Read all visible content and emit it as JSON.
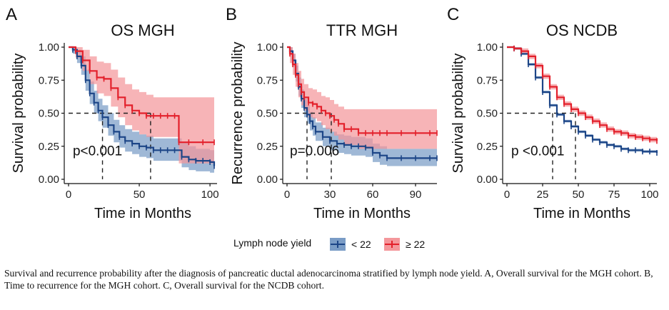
{
  "chart_data": [
    {
      "type": "line",
      "panel_letter": "A",
      "title": "OS MGH",
      "xlabel": "Time in Months",
      "ylabel": "Survival probability",
      "xlim": [
        0,
        105
      ],
      "ylim": [
        0,
        1
      ],
      "xticks": [
        0,
        50,
        100
      ],
      "xtick_labels": [
        "0",
        "50",
        "100"
      ],
      "yticks": [
        0,
        0.25,
        0.5,
        0.75,
        1.0
      ],
      "ytick_labels": [
        "0.00",
        "0.25",
        "0.50",
        "0.75",
        "1.00"
      ],
      "pvalue": "p<0.001",
      "pvalue_pos": [
        3,
        0.18
      ],
      "median_lines": [
        24,
        58
      ],
      "series": [
        {
          "name": "< 22",
          "x": [
            0,
            3,
            6,
            9,
            12,
            15,
            18,
            21,
            24,
            28,
            32,
            36,
            40,
            45,
            50,
            55,
            60,
            65,
            70,
            75,
            80,
            85,
            90,
            95,
            100,
            103
          ],
          "y": [
            1.0,
            0.98,
            0.93,
            0.86,
            0.75,
            0.65,
            0.58,
            0.52,
            0.47,
            0.41,
            0.36,
            0.32,
            0.29,
            0.27,
            0.25,
            0.24,
            0.22,
            0.22,
            0.22,
            0.22,
            0.17,
            0.15,
            0.14,
            0.14,
            0.13,
            0.1
          ],
          "lower": [
            1.0,
            0.95,
            0.88,
            0.79,
            0.67,
            0.57,
            0.5,
            0.44,
            0.39,
            0.33,
            0.28,
            0.24,
            0.21,
            0.19,
            0.17,
            0.16,
            0.14,
            0.14,
            0.14,
            0.14,
            0.09,
            0.07,
            0.06,
            0.06,
            0.05,
            0.03
          ],
          "upper": [
            1.0,
            1.0,
            0.98,
            0.93,
            0.83,
            0.74,
            0.67,
            0.61,
            0.56,
            0.5,
            0.45,
            0.41,
            0.38,
            0.36,
            0.34,
            0.33,
            0.31,
            0.31,
            0.31,
            0.31,
            0.28,
            0.25,
            0.23,
            0.23,
            0.22,
            0.2
          ]
        },
        {
          "name": "≥ 22",
          "x": [
            0,
            5,
            10,
            15,
            20,
            25,
            30,
            35,
            40,
            45,
            50,
            55,
            60,
            65,
            70,
            75,
            78,
            85,
            95,
            103
          ],
          "y": [
            1.0,
            0.97,
            0.9,
            0.82,
            0.77,
            0.76,
            0.69,
            0.62,
            0.56,
            0.52,
            0.5,
            0.48,
            0.48,
            0.48,
            0.48,
            0.48,
            0.28,
            0.28,
            0.28,
            0.28
          ],
          "lower": [
            1.0,
            0.92,
            0.82,
            0.72,
            0.65,
            0.63,
            0.55,
            0.47,
            0.41,
            0.37,
            0.34,
            0.32,
            0.32,
            0.32,
            0.32,
            0.32,
            0.12,
            0.12,
            0.12,
            0.12
          ],
          "upper": [
            1.0,
            1.0,
            0.98,
            0.93,
            0.89,
            0.88,
            0.83,
            0.77,
            0.72,
            0.68,
            0.66,
            0.64,
            0.62,
            0.62,
            0.62,
            0.62,
            0.62,
            0.62,
            0.62,
            0.62
          ]
        }
      ]
    },
    {
      "type": "line",
      "panel_letter": "B",
      "title": "TTR MGH",
      "xlabel": "Time in Months",
      "ylabel": "Recurrence probability",
      "xlim": [
        0,
        105
      ],
      "ylim": [
        0,
        1
      ],
      "xticks": [
        0,
        30,
        60,
        90
      ],
      "xtick_labels": [
        "0",
        "30",
        "60",
        "90"
      ],
      "yticks": [
        0,
        0.25,
        0.5,
        0.75,
        1.0
      ],
      "ytick_labels": [
        "0.00",
        "0.25",
        "0.50",
        "0.75",
        "1.00"
      ],
      "pvalue": "p=0.006",
      "pvalue_pos": [
        2,
        0.18
      ],
      "median_lines": [
        14,
        31
      ],
      "series": [
        {
          "name": "< 22",
          "x": [
            0,
            2,
            4,
            6,
            8,
            10,
            12,
            14,
            16,
            18,
            20,
            25,
            30,
            35,
            40,
            45,
            50,
            55,
            60,
            65,
            70,
            80,
            90,
            100,
            105
          ],
          "y": [
            1.0,
            0.97,
            0.9,
            0.8,
            0.7,
            0.61,
            0.54,
            0.49,
            0.44,
            0.4,
            0.36,
            0.32,
            0.29,
            0.27,
            0.26,
            0.25,
            0.25,
            0.24,
            0.2,
            0.18,
            0.16,
            0.16,
            0.16,
            0.16,
            0.16
          ],
          "lower": [
            1.0,
            0.94,
            0.85,
            0.74,
            0.63,
            0.54,
            0.47,
            0.42,
            0.37,
            0.33,
            0.29,
            0.25,
            0.22,
            0.2,
            0.19,
            0.18,
            0.18,
            0.17,
            0.13,
            0.11,
            0.1,
            0.1,
            0.1,
            0.1,
            0.1
          ],
          "upper": [
            1.0,
            1.0,
            0.95,
            0.86,
            0.77,
            0.68,
            0.61,
            0.56,
            0.51,
            0.47,
            0.43,
            0.39,
            0.36,
            0.34,
            0.33,
            0.32,
            0.32,
            0.31,
            0.27,
            0.25,
            0.23,
            0.23,
            0.23,
            0.23,
            0.23
          ]
        },
        {
          "name": "≥ 22",
          "x": [
            0,
            2,
            4,
            6,
            8,
            10,
            12,
            15,
            18,
            21,
            24,
            27,
            30,
            33,
            36,
            40,
            45,
            50,
            55,
            60,
            65,
            70,
            80,
            90,
            100,
            105
          ],
          "y": [
            1.0,
            0.95,
            0.87,
            0.79,
            0.72,
            0.66,
            0.62,
            0.58,
            0.57,
            0.55,
            0.52,
            0.5,
            0.48,
            0.45,
            0.42,
            0.38,
            0.38,
            0.35,
            0.35,
            0.35,
            0.35,
            0.35,
            0.35,
            0.35,
            0.35,
            0.35
          ],
          "lower": [
            1.0,
            0.88,
            0.79,
            0.7,
            0.62,
            0.56,
            0.52,
            0.47,
            0.46,
            0.44,
            0.41,
            0.38,
            0.36,
            0.33,
            0.3,
            0.26,
            0.26,
            0.23,
            0.23,
            0.23,
            0.23,
            0.23,
            0.23,
            0.23,
            0.23,
            0.23
          ],
          "upper": [
            1.0,
            1.0,
            0.95,
            0.88,
            0.82,
            0.76,
            0.72,
            0.69,
            0.68,
            0.66,
            0.63,
            0.62,
            0.6,
            0.57,
            0.55,
            0.53,
            0.53,
            0.53,
            0.53,
            0.53,
            0.53,
            0.53,
            0.53,
            0.53,
            0.53,
            0.53
          ]
        }
      ]
    },
    {
      "type": "line",
      "panel_letter": "C",
      "title": "OS NCDB",
      "xlabel": "Time in Months",
      "ylabel": "Survival probability",
      "xlim": [
        0,
        105
      ],
      "ylim": [
        0,
        1
      ],
      "xticks": [
        0,
        25,
        50,
        75,
        100
      ],
      "xtick_labels": [
        "0",
        "25",
        "50",
        "75",
        "100"
      ],
      "yticks": [
        0,
        0.25,
        0.5,
        0.75,
        1.0
      ],
      "ytick_labels": [
        "0.00",
        "0.25",
        "0.50",
        "0.75",
        "1.00"
      ],
      "pvalue": "p <0.001",
      "pvalue_pos": [
        3,
        0.18
      ],
      "median_lines": [
        32,
        48
      ],
      "series": [
        {
          "name": "< 22",
          "x": [
            0,
            5,
            10,
            15,
            20,
            25,
            30,
            35,
            40,
            45,
            50,
            55,
            60,
            65,
            70,
            75,
            80,
            85,
            90,
            95,
            100,
            105
          ],
          "y": [
            1.0,
            0.99,
            0.95,
            0.87,
            0.77,
            0.66,
            0.56,
            0.49,
            0.44,
            0.4,
            0.36,
            0.33,
            0.3,
            0.28,
            0.26,
            0.25,
            0.23,
            0.22,
            0.22,
            0.21,
            0.21,
            0.2
          ],
          "lower": [
            1.0,
            0.98,
            0.94,
            0.86,
            0.76,
            0.65,
            0.55,
            0.48,
            0.43,
            0.39,
            0.35,
            0.32,
            0.29,
            0.27,
            0.25,
            0.24,
            0.22,
            0.21,
            0.21,
            0.2,
            0.2,
            0.19
          ],
          "upper": [
            1.0,
            1.0,
            0.96,
            0.88,
            0.78,
            0.67,
            0.57,
            0.5,
            0.45,
            0.41,
            0.37,
            0.34,
            0.31,
            0.29,
            0.27,
            0.26,
            0.24,
            0.23,
            0.23,
            0.22,
            0.22,
            0.21
          ]
        },
        {
          "name": "≥ 22",
          "x": [
            0,
            5,
            10,
            15,
            20,
            25,
            30,
            35,
            40,
            45,
            50,
            55,
            60,
            65,
            70,
            75,
            80,
            85,
            90,
            95,
            100,
            105
          ],
          "y": [
            1.0,
            0.99,
            0.97,
            0.93,
            0.86,
            0.78,
            0.7,
            0.62,
            0.57,
            0.53,
            0.5,
            0.47,
            0.44,
            0.41,
            0.38,
            0.36,
            0.35,
            0.33,
            0.32,
            0.31,
            0.3,
            0.29
          ],
          "lower": [
            1.0,
            0.98,
            0.95,
            0.91,
            0.84,
            0.76,
            0.68,
            0.6,
            0.55,
            0.51,
            0.48,
            0.45,
            0.42,
            0.39,
            0.36,
            0.34,
            0.33,
            0.31,
            0.3,
            0.29,
            0.28,
            0.27
          ],
          "upper": [
            1.0,
            1.0,
            0.99,
            0.95,
            0.88,
            0.8,
            0.72,
            0.64,
            0.59,
            0.55,
            0.52,
            0.49,
            0.46,
            0.43,
            0.4,
            0.38,
            0.37,
            0.35,
            0.34,
            0.33,
            0.32,
            0.31
          ]
        }
      ]
    }
  ],
  "legend": {
    "title": "Lymph node yield",
    "items": [
      {
        "label": "< 22",
        "color": "#1c4587"
      },
      {
        "label": "≥ 22",
        "color": "#e3202b"
      }
    ]
  },
  "colors": {
    "blue_line": "#1c4587",
    "blue_band": "#7a9cc6",
    "red_line": "#e3202b",
    "red_band": "#f4979b"
  },
  "caption": "Survival and recurrence probability after the diagnosis of pancreatic ductal adenocarcinoma stratified by lymph node yield. A, Overall survival for the MGH cohort. B, Time to recurrence for the MGH cohort. C, Overall survival for the NCDB cohort."
}
